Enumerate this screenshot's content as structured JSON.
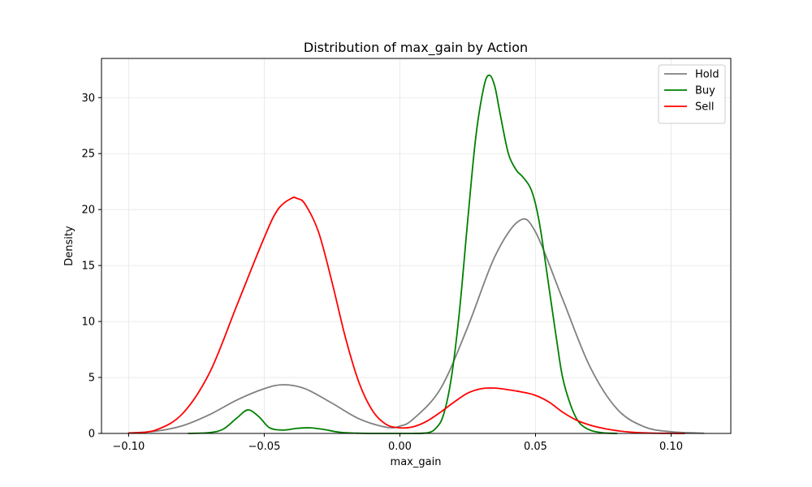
{
  "chart_data": {
    "type": "line",
    "title": "Distribution of max_gain by Action",
    "xlabel": "max_gain",
    "ylabel": "Density",
    "xlim": [
      -0.11,
      0.122
    ],
    "ylim": [
      0,
      33.5
    ],
    "xticks": [
      -0.1,
      -0.05,
      0.0,
      0.05,
      0.1
    ],
    "xtick_labels": [
      "−0.10",
      "−0.05",
      "0.00",
      "0.05",
      "0.10"
    ],
    "yticks": [
      0,
      5,
      10,
      15,
      20,
      25,
      30
    ],
    "ytick_labels": [
      "0",
      "5",
      "10",
      "15",
      "20",
      "25",
      "30"
    ],
    "grid": true,
    "legend_position": "top-right",
    "series": [
      {
        "name": "Hold",
        "color": "#808080",
        "x": [
          -0.1,
          -0.09,
          -0.08,
          -0.07,
          -0.06,
          -0.05,
          -0.043,
          -0.035,
          -0.025,
          -0.015,
          -0.005,
          0.0,
          0.005,
          0.015,
          0.025,
          0.035,
          0.044,
          0.05,
          0.06,
          0.07,
          0.08,
          0.09,
          0.1,
          0.112
        ],
        "y": [
          0.05,
          0.2,
          0.7,
          1.7,
          3.0,
          4.0,
          4.35,
          4.0,
          2.7,
          1.3,
          0.55,
          0.65,
          1.3,
          4.0,
          9.5,
          15.8,
          19.0,
          18.0,
          12.0,
          6.0,
          2.2,
          0.6,
          0.15,
          0.02
        ]
      },
      {
        "name": "Buy",
        "color": "#008000",
        "x": [
          -0.078,
          -0.07,
          -0.065,
          -0.06,
          -0.056,
          -0.052,
          -0.048,
          -0.043,
          -0.038,
          -0.033,
          -0.028,
          -0.022,
          -0.015,
          -0.005,
          0.005,
          0.01,
          0.013,
          0.016,
          0.019,
          0.022,
          0.025,
          0.028,
          0.031,
          0.033,
          0.035,
          0.037,
          0.04,
          0.043,
          0.045,
          0.048,
          0.05,
          0.052,
          0.055,
          0.058,
          0.06,
          0.063,
          0.066,
          0.07,
          0.075,
          0.08
        ],
        "y": [
          0.0,
          0.08,
          0.4,
          1.4,
          2.1,
          1.5,
          0.5,
          0.3,
          0.45,
          0.5,
          0.35,
          0.1,
          0.02,
          0.0,
          0.0,
          0.05,
          0.4,
          1.6,
          5.0,
          11.0,
          19.0,
          26.5,
          31.0,
          32.0,
          31.0,
          28.5,
          25.0,
          23.5,
          23.0,
          22.0,
          20.5,
          18.0,
          13.0,
          8.0,
          5.0,
          2.5,
          1.0,
          0.3,
          0.05,
          0.0
        ]
      },
      {
        "name": "Sell",
        "color": "#ff0000",
        "x": [
          -0.1,
          -0.09,
          -0.08,
          -0.07,
          -0.06,
          -0.05,
          -0.045,
          -0.04,
          -0.038,
          -0.035,
          -0.03,
          -0.025,
          -0.02,
          -0.015,
          -0.01,
          -0.005,
          0.0,
          0.005,
          0.01,
          0.015,
          0.02,
          0.025,
          0.03,
          0.035,
          0.04,
          0.045,
          0.05,
          0.055,
          0.06,
          0.065,
          0.07,
          0.075,
          0.08,
          0.085,
          0.09,
          0.095,
          0.1,
          0.105
        ],
        "y": [
          0.02,
          0.3,
          1.8,
          5.5,
          11.5,
          17.5,
          20.0,
          21.0,
          21.0,
          20.5,
          18.0,
          13.5,
          8.5,
          4.5,
          2.0,
          0.8,
          0.5,
          0.6,
          1.1,
          1.9,
          2.8,
          3.6,
          4.0,
          4.05,
          3.9,
          3.7,
          3.4,
          2.8,
          1.9,
          1.2,
          0.75,
          0.45,
          0.25,
          0.12,
          0.05,
          0.02,
          0.01,
          0.0
        ]
      }
    ]
  }
}
